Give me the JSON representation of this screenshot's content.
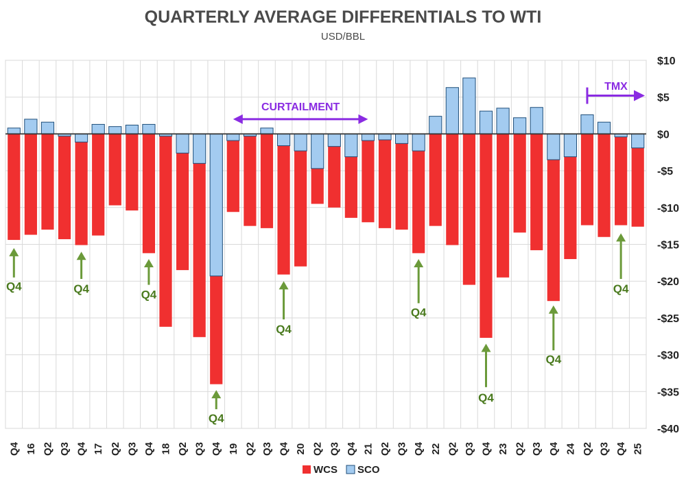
{
  "chart_data": {
    "type": "bar",
    "title": "QUARTERLY AVERAGE DIFFERENTIALS TO WTI",
    "subtitle": "USD/BBL",
    "ylim": [
      -40,
      10
    ],
    "ytick_values": [
      10,
      5,
      0,
      -5,
      -10,
      -15,
      -20,
      -25,
      -30,
      -35,
      -40
    ],
    "ytick_labels": [
      "$10",
      "$5",
      "$0",
      "-$5",
      "-$10",
      "-$15",
      "-$20",
      "-$25",
      "-$30",
      "-$35",
      "-$40"
    ],
    "grid": true,
    "legend_position": "bottom-center",
    "categories": [
      "Q4",
      "16",
      "Q2",
      "Q3",
      "Q4",
      "17",
      "Q2",
      "Q3",
      "Q4",
      "18",
      "Q2",
      "Q3",
      "Q4",
      "19",
      "Q2",
      "Q3",
      "Q4",
      "20",
      "Q2",
      "Q3",
      "Q4",
      "21",
      "Q2",
      "Q3",
      "Q4",
      "22",
      "Q2",
      "Q3",
      "Q4",
      "23",
      "Q2",
      "Q3",
      "Q4",
      "24",
      "Q2",
      "Q3",
      "Q4",
      "25"
    ],
    "series": [
      {
        "name": "WCS",
        "color": "#f03030",
        "values": [
          -14.4,
          -13.7,
          -13.0,
          -14.3,
          -15.1,
          -13.8,
          -9.7,
          -10.4,
          -16.2,
          -26.2,
          -18.5,
          -27.6,
          -34.0,
          -10.6,
          -12.5,
          -12.8,
          -19.1,
          -18.0,
          -9.5,
          -10.0,
          -11.4,
          -12.0,
          -12.8,
          -13.0,
          -16.2,
          -12.5,
          -15.1,
          -20.5,
          -27.7,
          -19.5,
          -13.4,
          -15.8,
          -22.7,
          -17.0,
          -12.4,
          -14.0,
          -12.4,
          -12.6
        ]
      },
      {
        "name": "SCO",
        "color": "#a3cbf0",
        "values": [
          0.8,
          2.0,
          1.6,
          -0.3,
          -1.1,
          1.3,
          1.0,
          1.2,
          1.3,
          -0.3,
          -2.6,
          -4.0,
          -19.3,
          -0.9,
          -0.3,
          0.8,
          -1.6,
          -2.3,
          -4.7,
          -1.7,
          -3.1,
          -0.9,
          -0.8,
          -1.3,
          -2.3,
          2.4,
          6.3,
          7.6,
          3.1,
          3.5,
          2.2,
          3.6,
          -3.5,
          -3.1,
          2.6,
          1.6,
          -0.4,
          -1.9
        ]
      }
    ],
    "annotations": {
      "q4_arrows": [
        {
          "index": 0,
          "tip": -15.5,
          "tail": -19.5,
          "label_value": -20.7
        },
        {
          "index": 4,
          "tip": -16.0,
          "tail": -19.7,
          "label_value": -21.0
        },
        {
          "index": 8,
          "tip": -17.0,
          "tail": -20.5,
          "label_value": -21.8
        },
        {
          "index": 12,
          "tip": -34.8,
          "tail": -37.4,
          "label_value": -38.6
        },
        {
          "index": 16,
          "tip": -20.0,
          "tail": -25.2,
          "label_value": -26.5
        },
        {
          "index": 24,
          "tip": -17.0,
          "tail": -23.0,
          "label_value": -24.2
        },
        {
          "index": 28,
          "tip": -28.5,
          "tail": -34.4,
          "label_value": -35.8
        },
        {
          "index": 32,
          "tip": -23.3,
          "tail": -29.4,
          "label_value": -30.6
        },
        {
          "index": 36,
          "tip": -13.5,
          "tail": -19.7,
          "label_value": -21.0
        }
      ],
      "q4_label": "Q4",
      "curtailment": {
        "label": "CURTAILMENT",
        "from_index": 13,
        "to_index": 21,
        "value": 2.0,
        "label_value": 3.2
      },
      "tmx": {
        "label": "TMX",
        "from_index": 34,
        "value": 5.2,
        "label_value": 6.0
      }
    }
  }
}
